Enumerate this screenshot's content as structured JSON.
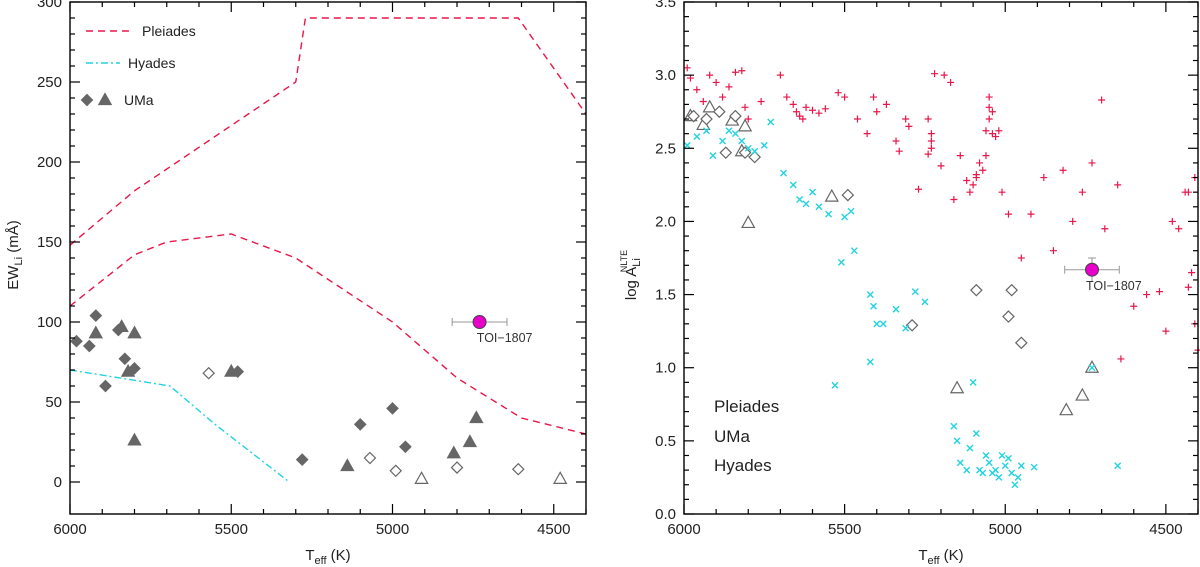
{
  "chart_data": [
    {
      "type": "scatter",
      "xlabel": "T",
      "xlabel_sub": "eff",
      "xlabel_unit": " (K)",
      "ylabel": "EW",
      "ylabel_sub": "Li",
      "ylabel_unit": " (mÅ)",
      "xlim": [
        6000,
        4400
      ],
      "ylim": [
        -20,
        300
      ],
      "xticks": [
        6000,
        5500,
        5000,
        4500
      ],
      "xtick_labels": [
        "6000",
        "5500",
        "5000",
        "4500"
      ],
      "yticks": [
        0,
        50,
        100,
        150,
        200,
        250,
        300
      ],
      "ytick_labels": [
        "0",
        "50",
        "100",
        "150",
        "200",
        "250",
        "300"
      ],
      "legend": {
        "placement": "top-left",
        "entries": [
          {
            "label": "Pleiades",
            "style": "dashed",
            "color": "#e8174a"
          },
          {
            "label": "Hyades",
            "style": "dashdot",
            "color": "#22d3e0"
          },
          {
            "label": "UMa",
            "style": "markers",
            "color": "#666666"
          }
        ]
      },
      "lines": [
        {
          "name": "Pleiades",
          "color": "#e8174a",
          "dash": "dashed",
          "x": [
            6000,
            5800,
            5300,
            5270,
            5190,
            4610,
            4400
          ],
          "y": [
            148,
            182,
            250,
            290,
            290,
            290,
            230
          ]
        },
        {
          "name": "Pleiades",
          "color": "#e8174a",
          "dash": "dashed",
          "x": [
            6000,
            5800,
            5700,
            5500,
            5300,
            5000,
            4800,
            4600,
            4400
          ],
          "y": [
            110,
            142,
            150,
            155,
            140,
            100,
            65,
            40,
            30
          ]
        },
        {
          "name": "Hyades",
          "color": "#22d3e0",
          "dash": "dashdot",
          "x": [
            6000,
            5690,
            5550,
            5320
          ],
          "y": [
            70,
            60,
            36,
            0
          ]
        }
      ],
      "series": [
        {
          "name": "UMa",
          "marker": "diamond",
          "filled": true,
          "color": "#666666",
          "x": [
            5980,
            5940,
            5920,
            5890,
            5850,
            5830,
            5800,
            5480,
            5280,
            5100,
            5000,
            4960
          ],
          "y": [
            88,
            85,
            104,
            60,
            95,
            77,
            71,
            69,
            14,
            36,
            46,
            22
          ]
        },
        {
          "name": "UMa",
          "marker": "triangle",
          "filled": true,
          "color": "#666666",
          "x": [
            5920,
            5840,
            5820,
            5800,
            5800,
            5500,
            5140,
            4810,
            4760,
            4740
          ],
          "y": [
            93,
            97,
            69,
            93,
            26,
            69,
            10,
            18,
            25,
            40
          ]
        },
        {
          "name": "UMa",
          "marker": "diamond",
          "filled": false,
          "color": "#666666",
          "x": [
            5570,
            5070,
            4990,
            4800,
            4610
          ],
          "y": [
            68,
            15,
            7,
            9,
            8
          ]
        },
        {
          "name": "UMa",
          "marker": "triangle",
          "filled": false,
          "color": "#666666",
          "x": [
            4910,
            4480
          ],
          "y": [
            2,
            2
          ]
        },
        {
          "name": "TOI-1807",
          "marker": "circle",
          "filled": true,
          "color": "#e600c8",
          "x": [
            4730
          ],
          "y": [
            100
          ],
          "xerr": [
            85
          ],
          "yerr": [
            0
          ]
        }
      ],
      "annotations": [
        {
          "text": "TOI−1807",
          "x": 4720,
          "y": 90
        }
      ]
    },
    {
      "type": "scatter",
      "xlabel": "T",
      "xlabel_sub": "eff",
      "xlabel_unit": " (K)",
      "ylabel": "log A",
      "ylabel_sub": "Li",
      "ylabel_sup": "NLTE",
      "xlim": [
        6000,
        4400
      ],
      "ylim": [
        0,
        3.5
      ],
      "xticks": [
        6000,
        5500,
        5000,
        4500
      ],
      "xtick_labels": [
        "6000",
        "5500",
        "5000",
        "4500"
      ],
      "yticks": [
        0,
        0.5,
        1.0,
        1.5,
        2.0,
        2.5,
        3.0,
        3.5
      ],
      "ytick_labels": [
        "0.0",
        "0.5",
        "1.0",
        "1.5",
        "2.0",
        "2.5",
        "3.0",
        "3.5"
      ],
      "legend": {
        "placement": "bottom-left",
        "entries": [
          {
            "label": "Pleiades",
            "color": "#e8174a"
          },
          {
            "label": "UMa",
            "color": "#666666"
          },
          {
            "label": "Hyades",
            "color": "#22d3e0"
          }
        ]
      },
      "series": [
        {
          "name": "Pleiades",
          "marker": "plus",
          "color": "#e8174a",
          "x": [
            5990,
            5980,
            5960,
            5940,
            5920,
            5900,
            5880,
            5860,
            5840,
            5820,
            5810,
            5800,
            5760,
            5700,
            5680,
            5660,
            5650,
            5640,
            5630,
            5620,
            5600,
            5580,
            5560,
            5520,
            5500,
            5460,
            5430,
            5410,
            5400,
            5370,
            5340,
            5330,
            5310,
            5300,
            5270,
            5240,
            5240,
            5230,
            5230,
            5230,
            5220,
            5200,
            5190,
            5170,
            5160,
            5140,
            5120,
            5110,
            5100,
            5090,
            5090,
            5080,
            5070,
            5060,
            5060,
            5050,
            5050,
            5050,
            5040,
            5040,
            5030,
            5020,
            5010,
            4990,
            4950,
            4920,
            4880,
            4850,
            4820,
            4790,
            4760,
            4730,
            4700,
            4690,
            4650,
            4640,
            4600,
            4560,
            4520,
            4500,
            4480,
            4460,
            4440,
            4430,
            4410,
            4400,
            4410,
            4420,
            4430
          ],
          "y": [
            3.05,
            2.98,
            2.9,
            2.82,
            3.0,
            2.95,
            2.85,
            2.92,
            3.02,
            3.03,
            2.78,
            2.7,
            2.82,
            3.0,
            2.85,
            2.8,
            2.75,
            2.72,
            2.7,
            2.78,
            2.76,
            2.74,
            2.77,
            2.88,
            2.85,
            2.7,
            2.6,
            2.85,
            2.75,
            2.8,
            2.55,
            2.48,
            2.7,
            2.65,
            2.22,
            2.46,
            2.7,
            2.6,
            2.55,
            2.5,
            3.01,
            2.38,
            3.0,
            2.95,
            2.15,
            2.45,
            2.28,
            2.2,
            2.25,
            2.3,
            2.32,
            2.4,
            2.35,
            2.45,
            2.62,
            2.7,
            2.78,
            2.85,
            2.6,
            2.75,
            2.58,
            2.62,
            2.2,
            2.05,
            1.75,
            2.05,
            2.3,
            1.8,
            2.35,
            2.0,
            2.2,
            2.4,
            2.83,
            1.95,
            2.25,
            1.06,
            1.42,
            1.5,
            1.52,
            1.25,
            2.0,
            1.95,
            2.2,
            2.2,
            2.3,
            1.12,
            1.3,
            1.65,
            1.55
          ],
          "skip_note": ""
        },
        {
          "name": "UMa",
          "marker": "triangle",
          "filled": false,
          "color": "#666666",
          "x": [
            5980,
            5940,
            5920,
            5850,
            5820,
            5810,
            5800,
            5540,
            5150,
            4810,
            4760,
            4730
          ],
          "y": [
            2.72,
            2.66,
            2.78,
            2.69,
            2.48,
            2.65,
            1.99,
            2.17,
            0.86,
            0.71,
            0.81,
            1.0
          ],
          "skip_note": ""
        },
        {
          "name": "UMa",
          "marker": "diamond",
          "filled": false,
          "color": "#666666",
          "x": [
            5970,
            5930,
            5890,
            5870,
            5840,
            5810,
            5780,
            5490,
            5290,
            5090,
            4990,
            4980,
            4950
          ],
          "y": [
            2.72,
            2.7,
            2.75,
            2.47,
            2.72,
            2.47,
            2.44,
            2.18,
            1.29,
            1.53,
            1.35,
            1.53,
            1.17
          ],
          "skip_note": ""
        },
        {
          "name": "Hyades",
          "marker": "x",
          "color": "#22d3e0",
          "x": [
            5990,
            5960,
            5930,
            5910,
            5880,
            5860,
            5840,
            5820,
            5800,
            5780,
            5750,
            5730,
            5690,
            5660,
            5640,
            5620,
            5600,
            5580,
            5550,
            5510,
            5500,
            5480,
            5470,
            5420,
            5410,
            5400,
            5380,
            5340,
            5310,
            5280,
            5250,
            5160,
            5150,
            5140,
            5120,
            5110,
            5100,
            5090,
            5080,
            5070,
            5060,
            5050,
            5040,
            5030,
            5020,
            5010,
            5000,
            4990,
            4980,
            4970,
            4960,
            4950,
            4910,
            4730,
            4650,
            5420,
            5530
          ],
          "y": [
            2.52,
            2.58,
            2.62,
            2.45,
            2.55,
            2.62,
            2.6,
            2.55,
            2.5,
            2.48,
            2.52,
            2.68,
            2.33,
            2.25,
            2.15,
            2.12,
            2.2,
            2.1,
            2.05,
            1.72,
            2.03,
            2.07,
            1.8,
            1.5,
            1.42,
            1.3,
            1.3,
            1.4,
            1.27,
            1.52,
            1.45,
            0.6,
            0.5,
            0.35,
            0.3,
            0.45,
            0.9,
            0.55,
            0.3,
            0.28,
            0.4,
            0.35,
            0.28,
            0.3,
            0.25,
            0.4,
            0.33,
            0.38,
            0.28,
            0.2,
            0.25,
            0.33,
            0.32,
            1.0,
            0.33,
            1.04,
            0.88
          ],
          "skip_note": ""
        },
        {
          "name": "TOI-1807",
          "marker": "circle",
          "filled": true,
          "color": "#e600c8",
          "x": [
            4730
          ],
          "y": [
            1.67
          ],
          "xerr": [
            85
          ],
          "yerr": [
            0.08
          ]
        }
      ],
      "annotations": [
        {
          "text": "TOI−1807",
          "x": 4730,
          "y": 1.56
        }
      ]
    }
  ]
}
